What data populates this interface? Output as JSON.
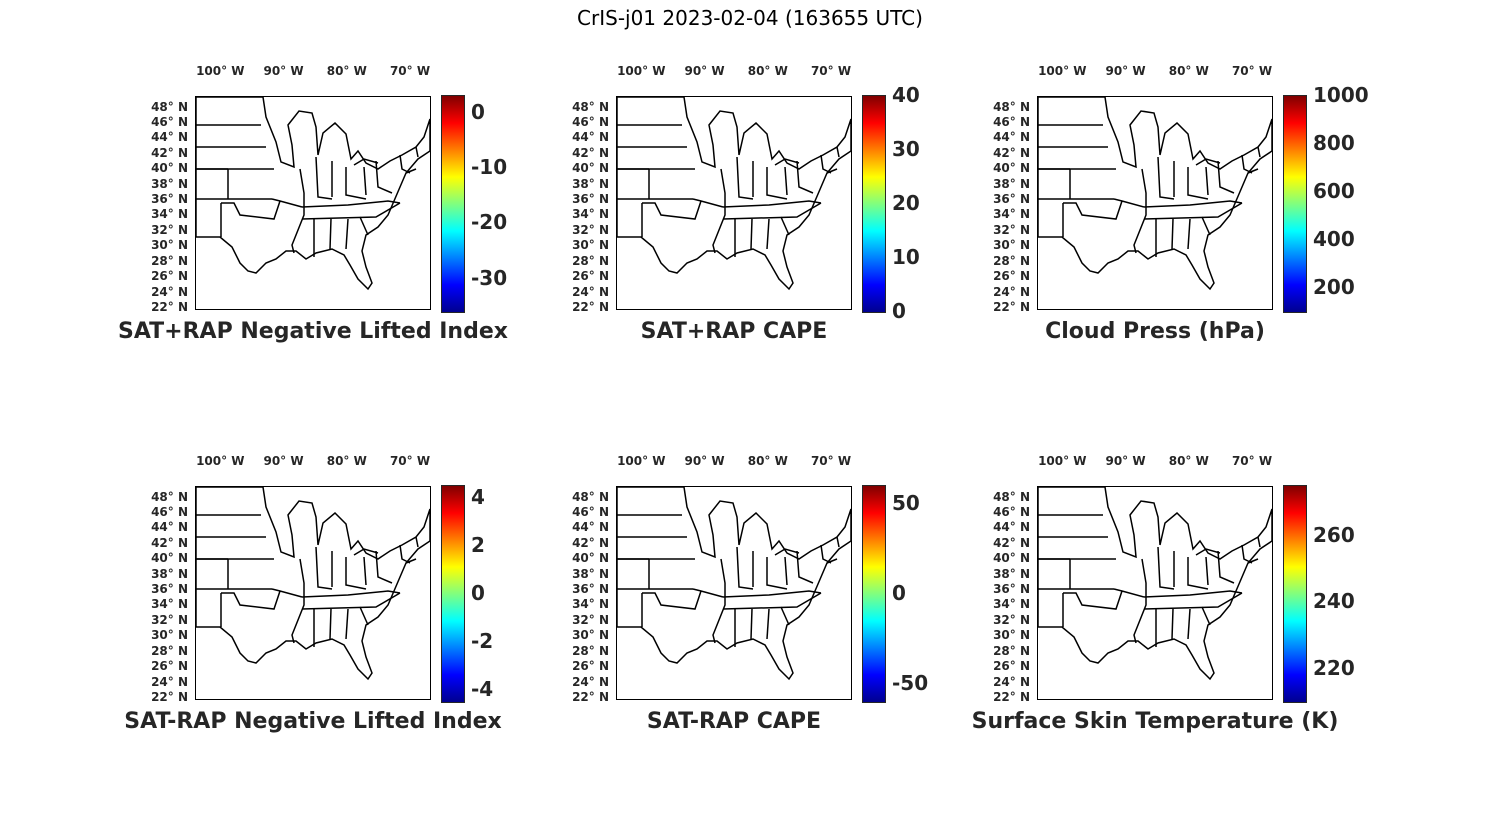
{
  "figure": {
    "title": "CrIS-j01 2023-02-04 (163655 UTC)"
  },
  "axes": {
    "lat_labels": [
      "48° N",
      "46° N",
      "44° N",
      "42° N",
      "40° N",
      "38° N",
      "36° N",
      "34° N",
      "32° N",
      "30° N",
      "28° N",
      "26° N",
      "24° N",
      "22° N"
    ],
    "lat_values": [
      48,
      46,
      44,
      42,
      40,
      38,
      36,
      34,
      32,
      30,
      28,
      26,
      24,
      22
    ],
    "lon_labels": [
      "100° W",
      "90° W",
      "80° W",
      "70° W"
    ],
    "lon_values": [
      -100,
      -90,
      -80,
      -70
    ],
    "lat_range": [
      22,
      49.5
    ],
    "lon_range": [
      -104,
      -67
    ]
  },
  "colormap": "jet",
  "colors": {
    "axes_text": "#262626",
    "coastline": "#000000"
  },
  "panels": [
    {
      "caption": "SAT+RAP Negative Lifted Index",
      "colorbar_ticks": [
        "0",
        "-10",
        "-20",
        "-30"
      ],
      "tick_values": [
        0,
        -10,
        -20,
        -30
      ],
      "range": [
        -36,
        3
      ]
    },
    {
      "caption": "SAT+RAP CAPE",
      "colorbar_ticks": [
        "40",
        "30",
        "20",
        "10",
        "0"
      ],
      "tick_values": [
        40,
        30,
        20,
        10,
        0
      ],
      "range": [
        0,
        40
      ]
    },
    {
      "caption": "Cloud Press (hPa)",
      "colorbar_ticks": [
        "1000",
        "800",
        "600",
        "400",
        "200"
      ],
      "tick_values": [
        1000,
        800,
        600,
        400,
        200
      ],
      "range": [
        100,
        1000
      ]
    },
    {
      "caption": "SAT-RAP Negative Lifted Index",
      "colorbar_ticks": [
        "4",
        "2",
        "0",
        "-2",
        "-4"
      ],
      "tick_values": [
        4,
        2,
        0,
        -2,
        -4
      ],
      "range": [
        -4.5,
        4.5
      ]
    },
    {
      "caption": "SAT-RAP CAPE",
      "colorbar_ticks": [
        "50",
        "0",
        "-50"
      ],
      "tick_values": [
        50,
        0,
        -50
      ],
      "range": [
        -60,
        60
      ]
    },
    {
      "caption": "Surface Skin Temperature (K)",
      "colorbar_ticks": [
        "260",
        "240",
        "220"
      ],
      "tick_values": [
        260,
        240,
        220
      ],
      "range": [
        210,
        275
      ]
    }
  ]
}
